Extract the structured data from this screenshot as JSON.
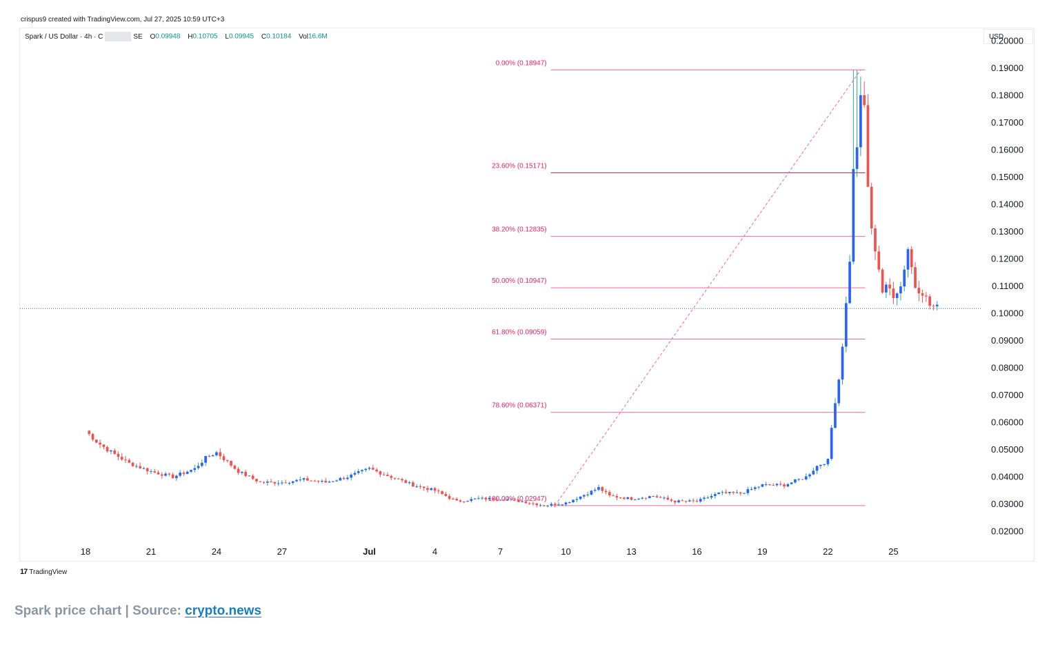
{
  "header": {
    "creator": "crispus9 created with TradingView.com, Jul 27, 2025 10:59 UTC+3"
  },
  "legend": {
    "symbol": "Spark / US Dollar · 4h · C",
    "exchange_tail": "SE",
    "open_label": "O",
    "open": "0.09948",
    "high_label": "H",
    "high": "0.10705",
    "low_label": "L",
    "low": "0.09945",
    "close_label": "C",
    "close": "0.10184",
    "vol_label": "Vol",
    "vol": "16.6M"
  },
  "currency": "USD",
  "brand": {
    "icon": "tradingview-logo",
    "name": "TradingView"
  },
  "caption": {
    "text": "Spark price chart | Source:",
    "link": "crypto.news"
  },
  "colors": {
    "up": "#2962ff",
    "up_wick": "#26a69a",
    "down": "#ef5350",
    "fib": "#f2679c",
    "fib_text": "#e91e63",
    "last_price": "#2962ff"
  },
  "chart_data": {
    "type": "candlestick",
    "ylim": [
      0.015,
      0.205
    ],
    "y_ticks": [
      "0.20000",
      "0.19000",
      "0.18000",
      "0.17000",
      "0.16000",
      "0.15000",
      "0.14000",
      "0.13000",
      "0.12000",
      "0.11000",
      "0.10000",
      "0.09000",
      "0.08000",
      "0.07000",
      "0.06000",
      "0.05000",
      "0.04000",
      "0.03000",
      "0.02000"
    ],
    "x_range": [
      "2025-06-15",
      "2025-07-29"
    ],
    "x_ticks": [
      {
        "label": "18",
        "date": "2025-06-18"
      },
      {
        "label": "21",
        "date": "2025-06-21"
      },
      {
        "label": "24",
        "date": "2025-06-24"
      },
      {
        "label": "27",
        "date": "2025-06-27"
      },
      {
        "label": "Jul",
        "date": "2025-07-01",
        "bold": true
      },
      {
        "label": "4",
        "date": "2025-07-04"
      },
      {
        "label": "7",
        "date": "2025-07-07"
      },
      {
        "label": "10",
        "date": "2025-07-10"
      },
      {
        "label": "13",
        "date": "2025-07-13"
      },
      {
        "label": "16",
        "date": "2025-07-16"
      },
      {
        "label": "19",
        "date": "2025-07-19"
      },
      {
        "label": "22",
        "date": "2025-07-22"
      },
      {
        "label": "25",
        "date": "2025-07-25"
      }
    ],
    "price_path": [
      {
        "date": "2025-06-18",
        "close": 0.057
      },
      {
        "date": "2025-06-18T12:00",
        "close": 0.053
      },
      {
        "date": "2025-06-19",
        "close": 0.05
      },
      {
        "date": "2025-06-20",
        "close": 0.045
      },
      {
        "date": "2025-06-21",
        "close": 0.042
      },
      {
        "date": "2025-06-22",
        "close": 0.04
      },
      {
        "date": "2025-06-23",
        "close": 0.043
      },
      {
        "date": "2025-06-23T12:00",
        "close": 0.047
      },
      {
        "date": "2025-06-24",
        "close": 0.049
      },
      {
        "date": "2025-06-25",
        "close": 0.042
      },
      {
        "date": "2025-06-26",
        "close": 0.038
      },
      {
        "date": "2025-06-27",
        "close": 0.038
      },
      {
        "date": "2025-06-28",
        "close": 0.039
      },
      {
        "date": "2025-06-29",
        "close": 0.038
      },
      {
        "date": "2025-06-30",
        "close": 0.04
      },
      {
        "date": "2025-07-01",
        "close": 0.043
      },
      {
        "date": "2025-07-02",
        "close": 0.04
      },
      {
        "date": "2025-07-03",
        "close": 0.037
      },
      {
        "date": "2025-07-04",
        "close": 0.035
      },
      {
        "date": "2025-07-05",
        "close": 0.031
      },
      {
        "date": "2025-07-06",
        "close": 0.032
      },
      {
        "date": "2025-07-07",
        "close": 0.032
      },
      {
        "date": "2025-07-08",
        "close": 0.031
      },
      {
        "date": "2025-07-09",
        "close": 0.0295
      },
      {
        "date": "2025-07-10",
        "close": 0.0305
      },
      {
        "date": "2025-07-11",
        "close": 0.034
      },
      {
        "date": "2025-07-11T12:00",
        "close": 0.036
      },
      {
        "date": "2025-07-12",
        "close": 0.033
      },
      {
        "date": "2025-07-13",
        "close": 0.032
      },
      {
        "date": "2025-07-14",
        "close": 0.033
      },
      {
        "date": "2025-07-15",
        "close": 0.031
      },
      {
        "date": "2025-07-16",
        "close": 0.031
      },
      {
        "date": "2025-07-17",
        "close": 0.034
      },
      {
        "date": "2025-07-18",
        "close": 0.034
      },
      {
        "date": "2025-07-19",
        "close": 0.037
      },
      {
        "date": "2025-07-20",
        "close": 0.037
      },
      {
        "date": "2025-07-21",
        "close": 0.04
      },
      {
        "date": "2025-07-21T12:00",
        "close": 0.044
      },
      {
        "date": "2025-07-22",
        "close": 0.046
      },
      {
        "date": "2025-07-22T06:00",
        "close": 0.064
      },
      {
        "date": "2025-07-22T12:00",
        "close": 0.076
      },
      {
        "date": "2025-07-22T18:00",
        "close": 0.095
      },
      {
        "date": "2025-07-23",
        "close": 0.12
      },
      {
        "date": "2025-07-23T04:00",
        "close": 0.152
      },
      {
        "date": "2025-07-23T08:00",
        "close": 0.162
      },
      {
        "date": "2025-07-23T12:00",
        "close": 0.178
      },
      {
        "date": "2025-07-23T16:00",
        "close": 0.176
      },
      {
        "date": "2025-07-23T20:00",
        "close": 0.147
      },
      {
        "date": "2025-07-24",
        "close": 0.13
      },
      {
        "date": "2025-07-24T06:00",
        "close": 0.121
      },
      {
        "date": "2025-07-24T12:00",
        "close": 0.108
      },
      {
        "date": "2025-07-24T18:00",
        "close": 0.11
      },
      {
        "date": "2025-07-25",
        "close": 0.107
      },
      {
        "date": "2025-07-25T08:00",
        "close": 0.11
      },
      {
        "date": "2025-07-25T16:00",
        "close": 0.124
      },
      {
        "date": "2025-07-26",
        "close": 0.11
      },
      {
        "date": "2025-07-26T08:00",
        "close": 0.108
      },
      {
        "date": "2025-07-26T16:00",
        "close": 0.103
      },
      {
        "date": "2025-07-27",
        "close": 0.102
      }
    ],
    "spike_highs": [
      {
        "date": "2025-06-18",
        "high": 0.0665
      },
      {
        "date": "2025-07-23T06:00",
        "high": 0.1895
      },
      {
        "date": "2025-07-23T12:00",
        "high": 0.187
      }
    ],
    "fib_levels": [
      {
        "label": "0.00% (0.18947)",
        "price": 0.18947
      },
      {
        "label": "23.60% (0.15171)",
        "price": 0.15171
      },
      {
        "label": "38.20% (0.12835)",
        "price": 0.12835
      },
      {
        "label": "50.00% (0.10947)",
        "price": 0.10947
      },
      {
        "label": "61.80% (0.09059)",
        "price": 0.09059
      },
      {
        "label": "78.60% (0.06371)",
        "price": 0.06371
      },
      {
        "label": "100.00% (0.02947)",
        "price": 0.02947
      }
    ],
    "fib_trend": {
      "from": {
        "date": "2025-07-09T12:00",
        "price": 0.02947
      },
      "to": {
        "date": "2025-07-23T12:00",
        "price": 0.18947
      }
    },
    "last_price": 0.10184
  }
}
